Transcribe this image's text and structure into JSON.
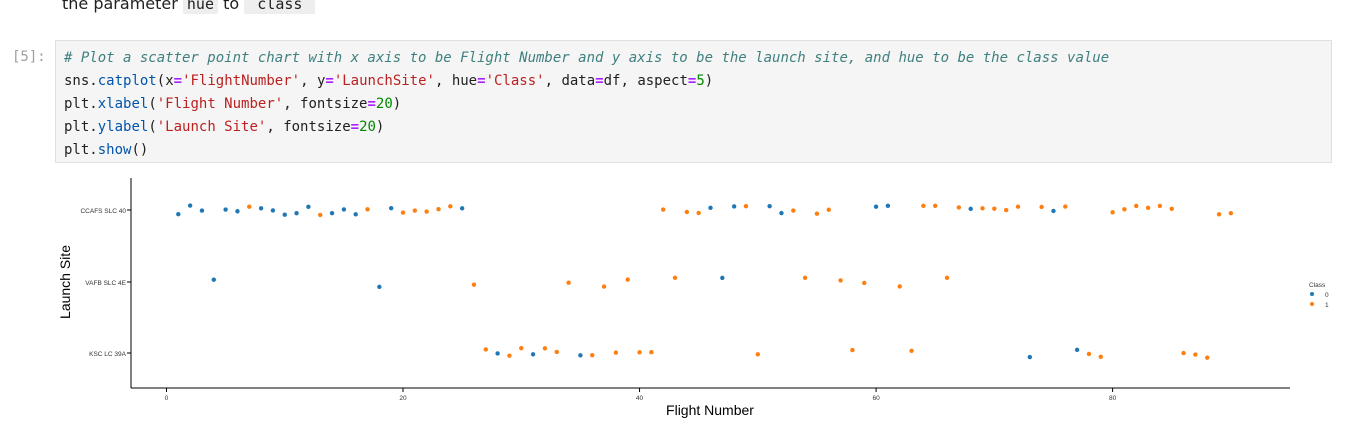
{
  "markdown": {
    "prefix": "the parameter",
    "code1": "hue",
    "mid": "to",
    "code2": "`class`"
  },
  "cell": {
    "prompt": "[5]:",
    "comment": "# Plot a scatter point chart with x axis to be Flight Number and y axis to be the launch site, and hue to be the class value",
    "line2": {
      "obj": "sns",
      "fn": "catplot",
      "a1": "x",
      "s1": "'FlightNumber'",
      "a2": "y",
      "s2": "'LaunchSite'",
      "a3": "hue",
      "s3": "'Class'",
      "a4": "data",
      "v4": "df",
      "a5": "aspect",
      "n5": "5"
    },
    "line3": {
      "obj": "plt",
      "fn": "xlabel",
      "s": "'Flight Number'",
      "kw": "fontsize",
      "n": "20"
    },
    "line4": {
      "obj": "plt",
      "fn": "ylabel",
      "s": "'Launch Site'",
      "kw": "fontsize",
      "n": "20"
    },
    "line5": {
      "obj": "plt",
      "fn": "show"
    }
  },
  "chart_data": {
    "type": "scatter",
    "xlabel": "Flight Number",
    "ylabel": "Launch Site",
    "categories": [
      "CCAFS SLC 40",
      "VAFB SLC 4E",
      "KSC LC 39A"
    ],
    "xlim": [
      -3,
      95
    ],
    "xticks": [
      0,
      20,
      40,
      60,
      80
    ],
    "legend_title": "Class",
    "legend_position": "right",
    "grid": false,
    "colors": {
      "0": "#1f77b4",
      "1": "#ff7f0e"
    },
    "series": [
      {
        "name": "0",
        "points": [
          [
            1,
            "CCAFS SLC 40"
          ],
          [
            2,
            "CCAFS SLC 40"
          ],
          [
            3,
            "CCAFS SLC 40"
          ],
          [
            5,
            "CCAFS SLC 40"
          ],
          [
            6,
            "CCAFS SLC 40"
          ],
          [
            8,
            "CCAFS SLC 40"
          ],
          [
            9,
            "CCAFS SLC 40"
          ],
          [
            10,
            "CCAFS SLC 40"
          ],
          [
            11,
            "CCAFS SLC 40"
          ],
          [
            12,
            "CCAFS SLC 40"
          ],
          [
            14,
            "CCAFS SLC 40"
          ],
          [
            15,
            "CCAFS SLC 40"
          ],
          [
            16,
            "CCAFS SLC 40"
          ],
          [
            19,
            "CCAFS SLC 40"
          ],
          [
            25,
            "CCAFS SLC 40"
          ],
          [
            46,
            "CCAFS SLC 40"
          ],
          [
            48,
            "CCAFS SLC 40"
          ],
          [
            51,
            "CCAFS SLC 40"
          ],
          [
            52,
            "CCAFS SLC 40"
          ],
          [
            60,
            "CCAFS SLC 40"
          ],
          [
            61,
            "CCAFS SLC 40"
          ],
          [
            68,
            "CCAFS SLC 40"
          ],
          [
            75,
            "CCAFS SLC 40"
          ],
          [
            4,
            "VAFB SLC 4E"
          ],
          [
            18,
            "VAFB SLC 4E"
          ],
          [
            47,
            "VAFB SLC 4E"
          ],
          [
            28,
            "KSC LC 39A"
          ],
          [
            31,
            "KSC LC 39A"
          ],
          [
            35,
            "KSC LC 39A"
          ],
          [
            73,
            "KSC LC 39A"
          ],
          [
            77,
            "KSC LC 39A"
          ]
        ]
      },
      {
        "name": "1",
        "points": [
          [
            7,
            "CCAFS SLC 40"
          ],
          [
            13,
            "CCAFS SLC 40"
          ],
          [
            17,
            "CCAFS SLC 40"
          ],
          [
            20,
            "CCAFS SLC 40"
          ],
          [
            21,
            "CCAFS SLC 40"
          ],
          [
            22,
            "CCAFS SLC 40"
          ],
          [
            23,
            "CCAFS SLC 40"
          ],
          [
            24,
            "CCAFS SLC 40"
          ],
          [
            42,
            "CCAFS SLC 40"
          ],
          [
            44,
            "CCAFS SLC 40"
          ],
          [
            45,
            "CCAFS SLC 40"
          ],
          [
            49,
            "CCAFS SLC 40"
          ],
          [
            53,
            "CCAFS SLC 40"
          ],
          [
            55,
            "CCAFS SLC 40"
          ],
          [
            56,
            "CCAFS SLC 40"
          ],
          [
            64,
            "CCAFS SLC 40"
          ],
          [
            65,
            "CCAFS SLC 40"
          ],
          [
            67,
            "CCAFS SLC 40"
          ],
          [
            69,
            "CCAFS SLC 40"
          ],
          [
            70,
            "CCAFS SLC 40"
          ],
          [
            71,
            "CCAFS SLC 40"
          ],
          [
            72,
            "CCAFS SLC 40"
          ],
          [
            74,
            "CCAFS SLC 40"
          ],
          [
            76,
            "CCAFS SLC 40"
          ],
          [
            80,
            "CCAFS SLC 40"
          ],
          [
            81,
            "CCAFS SLC 40"
          ],
          [
            82,
            "CCAFS SLC 40"
          ],
          [
            83,
            "CCAFS SLC 40"
          ],
          [
            84,
            "CCAFS SLC 40"
          ],
          [
            85,
            "CCAFS SLC 40"
          ],
          [
            89,
            "CCAFS SLC 40"
          ],
          [
            90,
            "CCAFS SLC 40"
          ],
          [
            26,
            "VAFB SLC 4E"
          ],
          [
            34,
            "VAFB SLC 4E"
          ],
          [
            37,
            "VAFB SLC 4E"
          ],
          [
            39,
            "VAFB SLC 4E"
          ],
          [
            43,
            "VAFB SLC 4E"
          ],
          [
            54,
            "VAFB SLC 4E"
          ],
          [
            57,
            "VAFB SLC 4E"
          ],
          [
            59,
            "VAFB SLC 4E"
          ],
          [
            62,
            "VAFB SLC 4E"
          ],
          [
            66,
            "VAFB SLC 4E"
          ],
          [
            27,
            "KSC LC 39A"
          ],
          [
            29,
            "KSC LC 39A"
          ],
          [
            30,
            "KSC LC 39A"
          ],
          [
            32,
            "KSC LC 39A"
          ],
          [
            33,
            "KSC LC 39A"
          ],
          [
            36,
            "KSC LC 39A"
          ],
          [
            38,
            "KSC LC 39A"
          ],
          [
            40,
            "KSC LC 39A"
          ],
          [
            41,
            "KSC LC 39A"
          ],
          [
            50,
            "KSC LC 39A"
          ],
          [
            58,
            "KSC LC 39A"
          ],
          [
            63,
            "KSC LC 39A"
          ],
          [
            78,
            "KSC LC 39A"
          ],
          [
            79,
            "KSC LC 39A"
          ],
          [
            86,
            "KSC LC 39A"
          ],
          [
            87,
            "KSC LC 39A"
          ],
          [
            88,
            "KSC LC 39A"
          ]
        ]
      }
    ]
  }
}
